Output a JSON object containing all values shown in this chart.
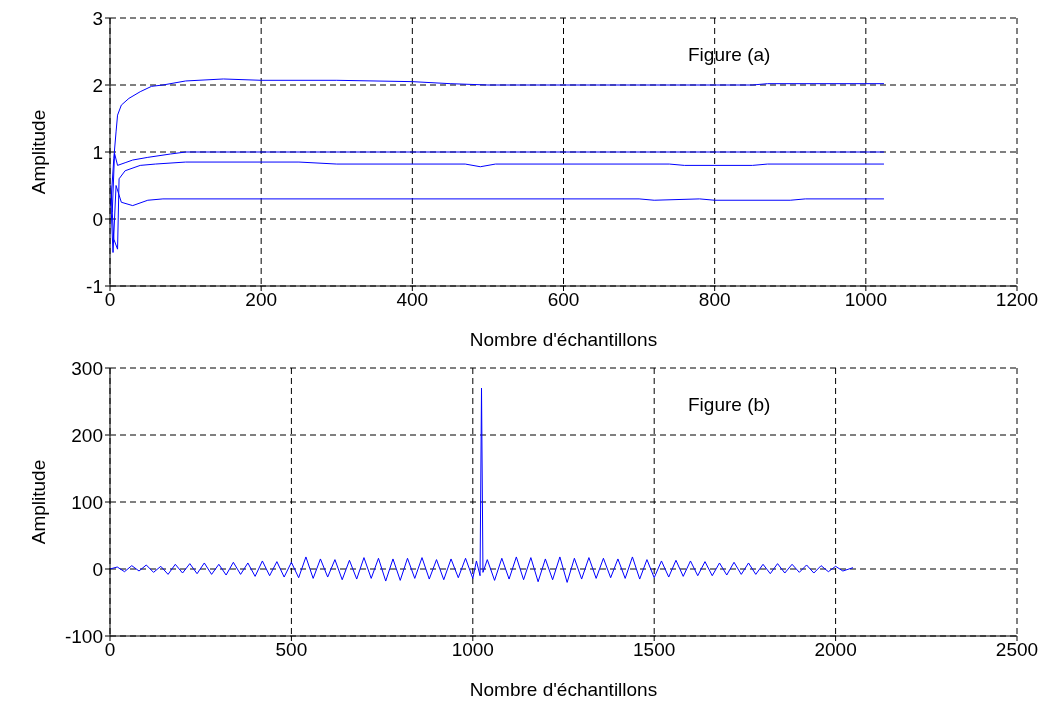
{
  "chart_data": [
    {
      "type": "line",
      "xlabel": "Nombre d'échantillons",
      "ylabel": "Amplitude",
      "annotations": [
        "Figure (a)"
      ],
      "xlim": [
        0,
        1200
      ],
      "xticks": [
        0,
        200,
        400,
        600,
        800,
        1000,
        1200
      ],
      "ylim": [
        -1,
        3
      ],
      "yticks": [
        -1,
        0,
        1,
        2,
        3
      ],
      "grid": true,
      "line_style": "solid",
      "series": [
        {
          "color": "#0000ff",
          "x": [
            1,
            5,
            8,
            10,
            15,
            25,
            40,
            55,
            70,
            100,
            150,
            200,
            300,
            400,
            450,
            500,
            600,
            850,
            870,
            1024
          ],
          "values": [
            0.2,
            0.9,
            1.3,
            1.55,
            1.7,
            1.8,
            1.9,
            1.98,
            2.0,
            2.06,
            2.09,
            2.07,
            2.07,
            2.05,
            2.02,
            2.0,
            2.0,
            2.0,
            2.02,
            2.02
          ]
        },
        {
          "color": "#0000ff",
          "x": [
            3,
            6,
            10,
            20,
            30,
            50,
            80,
            100,
            300,
            400,
            600,
            1024
          ],
          "values": [
            0.1,
            0.98,
            0.8,
            0.84,
            0.88,
            0.92,
            0.97,
            1.0,
            1.0,
            1.0,
            1.0,
            1.0
          ]
        },
        {
          "color": "#0000ff",
          "x": [
            1,
            5,
            10,
            12,
            20,
            40,
            60,
            100,
            250,
            300,
            470,
            490,
            510,
            740,
            760,
            850,
            870,
            1024
          ],
          "values": [
            0.5,
            -0.3,
            -0.45,
            0.6,
            0.72,
            0.8,
            0.82,
            0.85,
            0.85,
            0.82,
            0.82,
            0.78,
            0.82,
            0.82,
            0.8,
            0.8,
            0.82,
            0.82
          ]
        },
        {
          "color": "#0000ff",
          "x": [
            1,
            4,
            8,
            15,
            30,
            50,
            70,
            700,
            720,
            780,
            800,
            900,
            920,
            1024
          ],
          "values": [
            0.3,
            -0.5,
            0.5,
            0.25,
            0.2,
            0.28,
            0.3,
            0.3,
            0.28,
            0.3,
            0.28,
            0.28,
            0.3,
            0.3
          ]
        }
      ]
    },
    {
      "type": "line",
      "xlabel": "Nombre d'échantillons",
      "ylabel": "Amplitude",
      "annotations": [
        "Figure (b)"
      ],
      "xlim": [
        0,
        2500
      ],
      "xticks": [
        0,
        500,
        1000,
        1500,
        2000,
        2500
      ],
      "ylim": [
        -100,
        300
      ],
      "yticks": [
        -100,
        0,
        100,
        200,
        300
      ],
      "grid": true,
      "line_style": "solid",
      "series": [
        {
          "color": "#0000ff",
          "x": [
            0,
            20,
            40,
            60,
            80,
            100,
            120,
            140,
            160,
            180,
            200,
            220,
            240,
            260,
            280,
            300,
            320,
            340,
            360,
            380,
            400,
            420,
            440,
            460,
            480,
            500,
            520,
            540,
            560,
            580,
            600,
            620,
            640,
            660,
            680,
            700,
            720,
            740,
            760,
            780,
            800,
            820,
            840,
            860,
            880,
            900,
            920,
            940,
            960,
            980,
            1000,
            1010,
            1020,
            1024,
            1028,
            1040,
            1060,
            1080,
            1100,
            1120,
            1140,
            1160,
            1180,
            1200,
            1220,
            1240,
            1260,
            1280,
            1300,
            1320,
            1340,
            1360,
            1380,
            1400,
            1420,
            1440,
            1460,
            1480,
            1500,
            1520,
            1540,
            1560,
            1580,
            1600,
            1620,
            1640,
            1660,
            1680,
            1700,
            1720,
            1740,
            1760,
            1780,
            1800,
            1820,
            1840,
            1860,
            1880,
            1900,
            1920,
            1940,
            1960,
            1980,
            2000,
            2020,
            2048
          ],
          "values": [
            0,
            3,
            -4,
            5,
            -3,
            6,
            -5,
            4,
            -8,
            7,
            -6,
            8,
            -7,
            9,
            -8,
            7,
            -9,
            10,
            -8,
            9,
            -11,
            12,
            -10,
            11,
            -12,
            10,
            -13,
            18,
            -14,
            15,
            -12,
            14,
            -16,
            13,
            -15,
            17,
            -14,
            16,
            -18,
            15,
            -17,
            16,
            -14,
            17,
            -15,
            14,
            -16,
            15,
            -13,
            16,
            -14,
            12,
            -10,
            270,
            -5,
            14,
            -17,
            16,
            -15,
            18,
            -16,
            17,
            -19,
            15,
            -16,
            18,
            -20,
            16,
            -15,
            17,
            -14,
            16,
            -13,
            15,
            -14,
            18,
            -15,
            14,
            -13,
            12,
            -12,
            13,
            -11,
            12,
            -10,
            11,
            -10,
            9,
            -9,
            10,
            -8,
            9,
            -8,
            7,
            -7,
            8,
            -6,
            7,
            -5,
            6,
            -6,
            5,
            -4,
            4,
            -3,
            2
          ]
        }
      ]
    }
  ]
}
